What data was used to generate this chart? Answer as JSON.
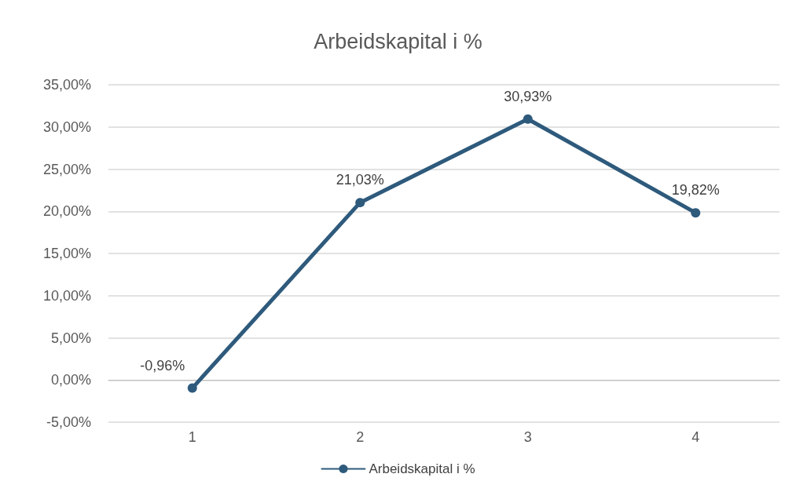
{
  "chart_data": {
    "type": "line",
    "title": "Arbeidskapital i %",
    "categories": [
      "1",
      "2",
      "3",
      "4"
    ],
    "series": [
      {
        "name": "Arbeidskapital i %",
        "color": "#2e5a7c",
        "values": [
          -0.96,
          21.03,
          30.93,
          19.82
        ],
        "value_labels": [
          "-0,96%",
          "21,03%",
          "30,93%",
          "19,82%"
        ]
      }
    ],
    "ylim": [
      -5,
      35
    ],
    "yticks": [
      {
        "value": -5,
        "label": "-5,00%"
      },
      {
        "value": 0,
        "label": "0,00%"
      },
      {
        "value": 5,
        "label": "5,00%"
      },
      {
        "value": 10,
        "label": "10,00%"
      },
      {
        "value": 15,
        "label": "15,00%"
      },
      {
        "value": 20,
        "label": "20,00%"
      },
      {
        "value": 25,
        "label": "25,00%"
      },
      {
        "value": 30,
        "label": "30,00%"
      },
      {
        "value": 35,
        "label": "35,00%"
      }
    ],
    "grid": "y",
    "legend": "bottom",
    "marker": "circle",
    "line_style": "solid"
  }
}
